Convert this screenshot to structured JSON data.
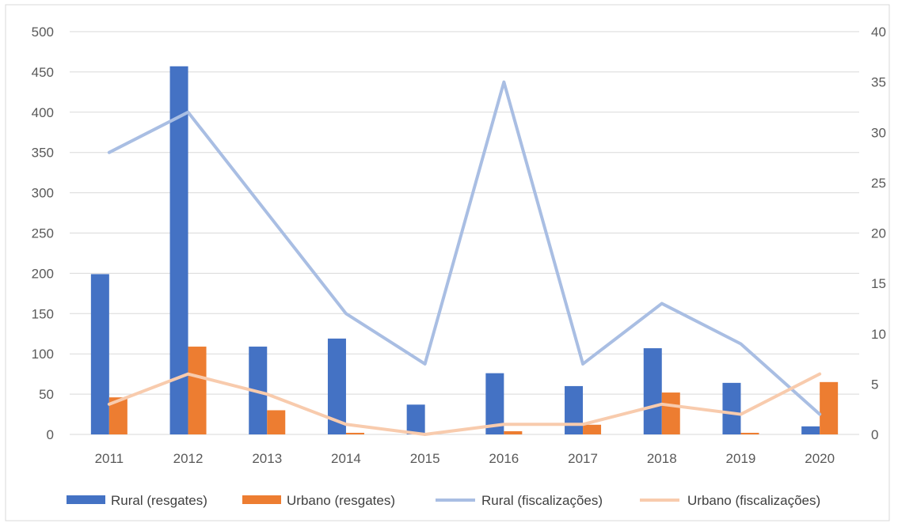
{
  "chart_data": {
    "type": "bar",
    "title": "",
    "xlabel": "",
    "ylabel": "",
    "categories": [
      "2011",
      "2012",
      "2013",
      "2014",
      "2015",
      "2016",
      "2017",
      "2018",
      "2019",
      "2020"
    ],
    "ylim": [
      0,
      500
    ],
    "y2lim": [
      0,
      40
    ],
    "y_ticks": [
      "0",
      "50",
      "100",
      "150",
      "200",
      "250",
      "300",
      "350",
      "400",
      "450",
      "500"
    ],
    "y2_ticks": [
      "0",
      "5",
      "10",
      "15",
      "20",
      "25",
      "30",
      "35",
      "40"
    ],
    "grid": true,
    "legend_position": "bottom",
    "series": [
      {
        "name": "Rural (resgates)",
        "kind": "bar",
        "axis": "left",
        "color": "#4472C4",
        "values": [
          199,
          457,
          109,
          119,
          37,
          76,
          60,
          107,
          64,
          10
        ]
      },
      {
        "name": "Urbano (resgates)",
        "kind": "bar",
        "axis": "left",
        "color": "#ED7D31",
        "values": [
          46,
          109,
          30,
          2,
          0,
          4,
          12,
          52,
          2,
          65
        ]
      },
      {
        "name": "Rural (fiscalizações)",
        "kind": "line",
        "axis": "right",
        "color": "#A9BEE3",
        "values": [
          28,
          32,
          22,
          12,
          7,
          35,
          7,
          13,
          9,
          2
        ]
      },
      {
        "name": "Urbano (fiscalizações)",
        "kind": "line",
        "axis": "right",
        "color": "#F8CBAD",
        "values": [
          3,
          6,
          4,
          1,
          0,
          1,
          1,
          3,
          2,
          6
        ]
      }
    ]
  }
}
